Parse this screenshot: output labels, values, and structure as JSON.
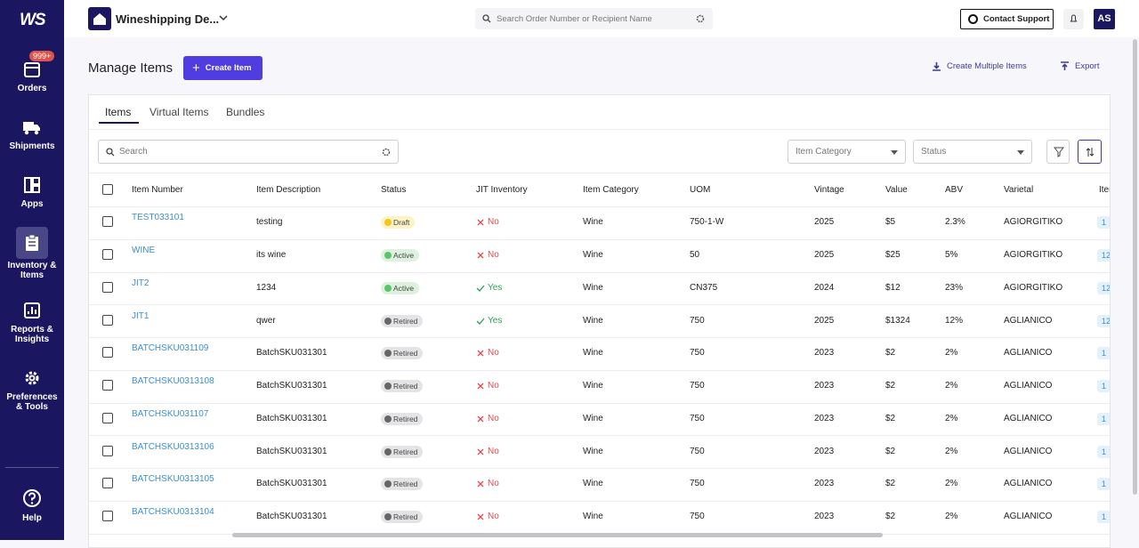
{
  "sidebar": {
    "logo": "WS",
    "badge": "999+",
    "nav": [
      "Orders",
      "Shipments",
      "Apps",
      "Inventory & Items",
      "Reports & Insights",
      "Preferences & Tools"
    ],
    "help": "Help"
  },
  "topbar": {
    "account": "Wineshipping De...",
    "search_placeholder": "Search Order Number or Recipient Name",
    "contact": "Contact Support",
    "avatar": "AS"
  },
  "page": {
    "title": "Manage Items",
    "create": "Create Item",
    "create_multiple": "Create Multiple Items",
    "export": "Export"
  },
  "tabs": [
    "Items",
    "Virtual Items",
    "Bundles"
  ],
  "filters": {
    "search_placeholder": "Search",
    "category": "Item Category",
    "status": "Status"
  },
  "table": {
    "columns": [
      "Item Number",
      "Item Description",
      "Status",
      "JIT Inventory",
      "Item Category",
      "UOM",
      "Vintage",
      "Value",
      "ABV",
      "Varietal",
      "Item"
    ],
    "rows": [
      [
        "TEST033101",
        "testing",
        "Draft",
        "No",
        "Wine",
        "750-1-W",
        "2025",
        "$5",
        "2.3%",
        "AGIORGITIKO",
        "1"
      ],
      [
        "WINE",
        "its wine",
        "Active",
        "No",
        "Wine",
        "50",
        "2025",
        "$25",
        "5%",
        "AGIORGITIKO",
        "12"
      ],
      [
        "JIT2",
        "1234",
        "Active",
        "Yes",
        "Wine",
        "CN375",
        "2024",
        "$12",
        "23%",
        "AGIORGITIKO",
        "12"
      ],
      [
        "JIT1",
        "qwer",
        "Retired",
        "Yes",
        "Wine",
        "750",
        "2025",
        "$1324",
        "12%",
        "AGLIANICO",
        "12"
      ],
      [
        "BATCHSKU031109",
        "BatchSKU031301",
        "Retired",
        "No",
        "Wine",
        "750",
        "2023",
        "$2",
        "2%",
        "AGLIANICO",
        "1"
      ],
      [
        "BATCHSKU0313108",
        "BatchSKU031301",
        "Retired",
        "No",
        "Wine",
        "750",
        "2023",
        "$2",
        "2%",
        "AGLIANICO",
        "1"
      ],
      [
        "BATCHSKU031107",
        "BatchSKU031301",
        "Retired",
        "No",
        "Wine",
        "750",
        "2023",
        "$2",
        "2%",
        "AGLIANICO",
        "1"
      ],
      [
        "BATCHSKU0313106",
        "BatchSKU031301",
        "Retired",
        "No",
        "Wine",
        "750",
        "2023",
        "$2",
        "2%",
        "AGLIANICO",
        "1"
      ],
      [
        "BATCHSKU0313105",
        "BatchSKU031301",
        "Retired",
        "No",
        "Wine",
        "750",
        "2023",
        "$2",
        "2%",
        "AGLIANICO",
        "1"
      ],
      [
        "BATCHSKU0313104",
        "BatchSKU031301",
        "Retired",
        "No",
        "Wine",
        "750",
        "2023",
        "$2",
        "2%",
        "AGLIANICO",
        "1"
      ]
    ]
  }
}
